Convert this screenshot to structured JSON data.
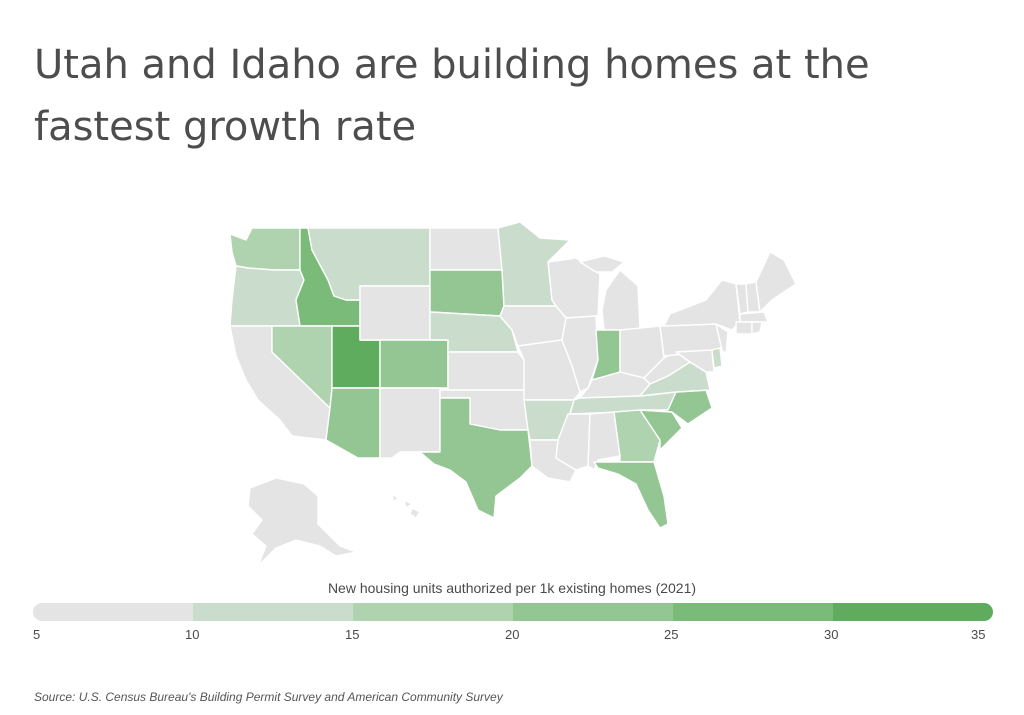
{
  "title": "Utah and Idaho are building homes at the fastest growth rate",
  "legend": {
    "title": "New housing units authorized per 1k existing homes (2021)",
    "ticks": [
      "5",
      "10",
      "15",
      "20",
      "25",
      "30",
      "35"
    ],
    "bin_colors": [
      "#e4e4e4",
      "#cadccb",
      "#aed3ae",
      "#93c693",
      "#7abb79",
      "#5fac5e"
    ]
  },
  "source": "Source:  U.S. Census Bureau's Building Permit Survey and American Community Survey",
  "map_data": {
    "type": "choropleth",
    "region": "United States",
    "states_by_bin": {
      "5-10": [
        "CA",
        "WY",
        "NM",
        "OK",
        "KS",
        "MO",
        "IA",
        "WI",
        "MI",
        "IL",
        "KY",
        "OH",
        "PA",
        "NY",
        "ME",
        "VT",
        "NH",
        "MA",
        "CT",
        "RI",
        "NJ",
        "MD",
        "WV",
        "MS",
        "AL",
        "LA",
        "AK",
        "HI",
        "ND"
      ],
      "10-15": [
        "OR",
        "MT",
        "NE",
        "MN",
        "AR",
        "VA",
        "TN",
        "DE"
      ],
      "15-20": [
        "WA",
        "NV",
        "GA"
      ],
      "20-25": [
        "SD",
        "CO",
        "AZ",
        "TX",
        "NC",
        "SC",
        "FL",
        "IN"
      ],
      "25-30": [
        "ID"
      ],
      "30-35": [
        "UT"
      ]
    }
  }
}
